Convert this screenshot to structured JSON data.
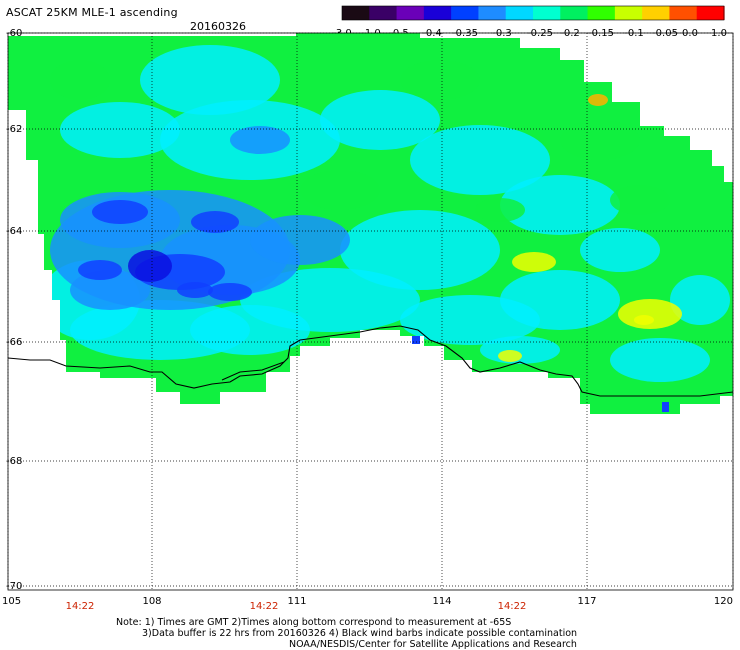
{
  "header": {
    "title": "ASCAT 25KM MLE-1 ascending",
    "date": "20160326"
  },
  "colorbar": {
    "labels": [
      "-3.0",
      "-1.0",
      "-0.5",
      "-0.4",
      "-0.35",
      "-0.3",
      "-0.25",
      "-0.2",
      "-0.15",
      "-0.1",
      "-0.05",
      "0.0",
      "1.0"
    ],
    "colors": [
      "#1a0a14",
      "#3a0066",
      "#6a00b8",
      "#1a00d8",
      "#0040ff",
      "#1e8cff",
      "#00d8ff",
      "#00ffd0",
      "#00f060",
      "#30ff00",
      "#c8ff00",
      "#ffd000",
      "#ff5000",
      "#ff0000"
    ]
  },
  "map": {
    "lat_labels": [
      "-60",
      "-62",
      "-64",
      "-66",
      "-68",
      "-70"
    ],
    "lon_labels": [
      "105",
      "108",
      "111",
      "114",
      "117",
      "120"
    ],
    "time_labels": [
      "14:22",
      "14:22",
      "14:22"
    ],
    "time_label_color": "#cc2200",
    "grid": "dotted",
    "colors": {
      "green": "#10f040",
      "cyan": "#00f0ff",
      "light_blue": "#1890ff",
      "blue": "#1040ff",
      "dark_blue": "#0a10e0",
      "yellow": "#f0ff00",
      "orange": "#ffb000",
      "coastline": "#000000"
    }
  },
  "notes": {
    "line1": "Note: 1) Times are GMT 2)Times along bottom correspond to measurement at -65S",
    "line2": "3)Data buffer is 22 hrs from 20160326 4) Black wind barbs indicate possible contamination",
    "line3": "NOAA/NESDIS/Center for Satellite Applications and Research"
  }
}
